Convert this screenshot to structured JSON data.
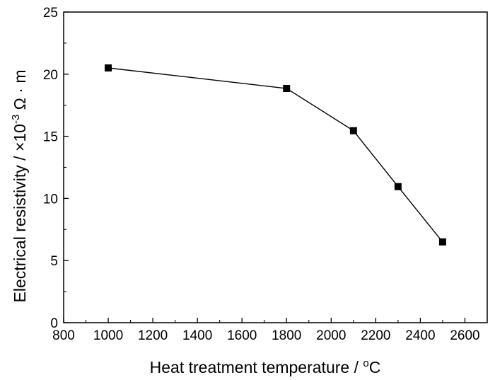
{
  "chart_data": {
    "type": "line",
    "xlabel": "Heat treatment temperature / ",
    "xlabel_unit_sup": "o",
    "xlabel_unit": "C",
    "ylabel": "Electrical resistivity / ×10",
    "ylabel_sup": "-3",
    "ylabel_unit": " Ω · m",
    "xlim": [
      800,
      2700
    ],
    "ylim": [
      0,
      25
    ],
    "xticks": [
      800,
      1000,
      1200,
      1400,
      1600,
      1800,
      2000,
      2200,
      2400,
      2600
    ],
    "yticks": [
      0,
      5,
      10,
      15,
      20,
      25
    ],
    "grid": false,
    "marker": "square",
    "series": [
      {
        "x": [
          1000,
          1800,
          2100,
          2300,
          2500
        ],
        "y": [
          20.5,
          18.85,
          15.45,
          10.95,
          6.5
        ],
        "color": "#000000"
      }
    ]
  }
}
